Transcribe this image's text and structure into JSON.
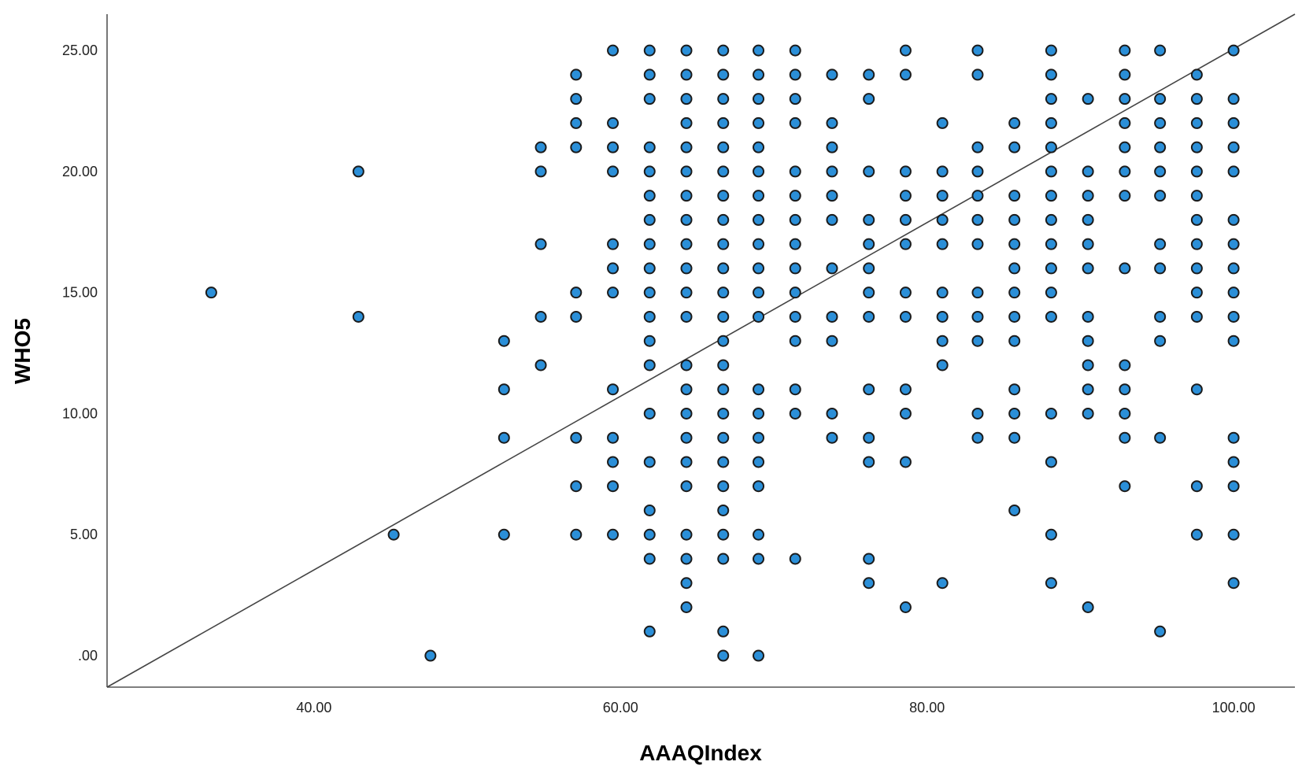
{
  "chart_data": {
    "type": "scatter",
    "title": "",
    "xlabel": "AAAQIndex",
    "ylabel": "WHO5",
    "xlim": [
      26.5,
      104
    ],
    "ylim": [
      -1.3,
      26.5
    ],
    "xticks": [
      40,
      60,
      80,
      100
    ],
    "xtick_labels": [
      "40.00",
      "60.00",
      "80.00",
      "100.00"
    ],
    "yticks": [
      0,
      5,
      10,
      15,
      20,
      25
    ],
    "ytick_labels": [
      ".00",
      "5.00",
      "10.00",
      "15.00",
      "20.00",
      "25.00"
    ],
    "grid": false,
    "legend": "none",
    "marker_color": "#2b8fd8",
    "marker_edge_color": "#1b1b1b",
    "fit_line": {
      "x": [
        26.5,
        104
      ],
      "y": [
        -1.3,
        26.5
      ]
    },
    "columns": [
      {
        "x": 33.3,
        "y": [
          15
        ]
      },
      {
        "x": 42.9,
        "y": [
          20,
          14
        ]
      },
      {
        "x": 45.2,
        "y": [
          5
        ]
      },
      {
        "x": 47.6,
        "y": [
          0
        ]
      },
      {
        "x": 52.4,
        "y": [
          13,
          11,
          9,
          5
        ]
      },
      {
        "x": 54.8,
        "y": [
          21,
          20,
          17,
          14,
          12
        ]
      },
      {
        "x": 57.1,
        "y": [
          24,
          23,
          22,
          21,
          15,
          14,
          9,
          7,
          5
        ]
      },
      {
        "x": 59.5,
        "y": [
          25,
          22,
          21,
          20,
          17,
          16,
          15,
          11,
          9,
          8,
          7,
          5
        ]
      },
      {
        "x": 61.9,
        "y": [
          25,
          24,
          23,
          21,
          20,
          19,
          18,
          17,
          16,
          15,
          14,
          13,
          12,
          10,
          8,
          6,
          5,
          4,
          1
        ]
      },
      {
        "x": 64.3,
        "y": [
          25,
          24,
          23,
          22,
          21,
          20,
          19,
          18,
          17,
          16,
          15,
          14,
          12,
          11,
          10,
          9,
          8,
          7,
          5,
          4,
          3,
          2
        ]
      },
      {
        "x": 66.7,
        "y": [
          25,
          24,
          23,
          22,
          21,
          20,
          19,
          18,
          17,
          16,
          15,
          14,
          13,
          12,
          11,
          10,
          9,
          8,
          7,
          6,
          5,
          4,
          1,
          0
        ]
      },
      {
        "x": 69.0,
        "y": [
          25,
          24,
          23,
          22,
          21,
          20,
          19,
          18,
          17,
          16,
          15,
          14,
          11,
          10,
          9,
          8,
          7,
          5,
          4,
          0
        ]
      },
      {
        "x": 71.4,
        "y": [
          25,
          24,
          23,
          22,
          20,
          19,
          18,
          17,
          16,
          15,
          14,
          13,
          11,
          10,
          4
        ]
      },
      {
        "x": 73.8,
        "y": [
          24,
          22,
          21,
          20,
          19,
          18,
          16,
          14,
          13,
          10,
          9
        ]
      },
      {
        "x": 76.2,
        "y": [
          24,
          23,
          20,
          18,
          17,
          16,
          15,
          14,
          11,
          9,
          8,
          4,
          3
        ]
      },
      {
        "x": 78.6,
        "y": [
          25,
          24,
          20,
          19,
          18,
          17,
          15,
          14,
          11,
          10,
          8,
          2
        ]
      },
      {
        "x": 81.0,
        "y": [
          22,
          20,
          19,
          18,
          17,
          15,
          14,
          13,
          12,
          3
        ]
      },
      {
        "x": 83.3,
        "y": [
          25,
          24,
          21,
          20,
          19,
          18,
          17,
          15,
          14,
          13,
          10,
          9
        ]
      },
      {
        "x": 85.7,
        "y": [
          22,
          21,
          19,
          18,
          17,
          16,
          15,
          14,
          13,
          11,
          10,
          9,
          6
        ]
      },
      {
        "x": 88.1,
        "y": [
          25,
          24,
          23,
          22,
          21,
          20,
          19,
          18,
          17,
          16,
          15,
          14,
          10,
          8,
          5,
          3
        ]
      },
      {
        "x": 90.5,
        "y": [
          23,
          20,
          19,
          18,
          17,
          16,
          14,
          13,
          12,
          11,
          10,
          2
        ]
      },
      {
        "x": 92.9,
        "y": [
          25,
          24,
          23,
          22,
          21,
          20,
          19,
          16,
          12,
          11,
          10,
          9,
          7
        ]
      },
      {
        "x": 95.2,
        "y": [
          25,
          23,
          22,
          21,
          20,
          19,
          17,
          16,
          14,
          13,
          9,
          1
        ]
      },
      {
        "x": 97.6,
        "y": [
          24,
          23,
          22,
          21,
          20,
          19,
          18,
          17,
          16,
          15,
          14,
          11,
          7,
          5
        ]
      },
      {
        "x": 100.0,
        "y": [
          25,
          23,
          22,
          21,
          20,
          18,
          17,
          16,
          15,
          14,
          13,
          9,
          8,
          7,
          5,
          3
        ]
      }
    ]
  }
}
